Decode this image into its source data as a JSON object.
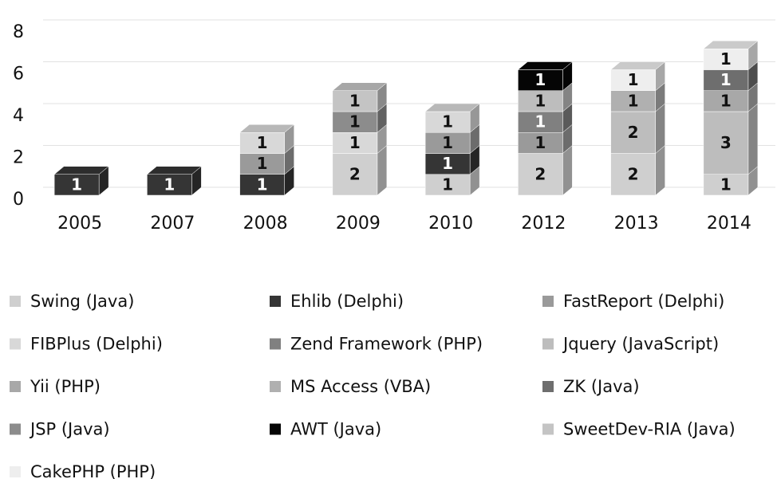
{
  "chart_data": {
    "type": "bar3d_stacked",
    "categories": [
      "2005",
      "2007",
      "2008",
      "2009",
      "2010",
      "2012",
      "2013",
      "2014"
    ],
    "series": [
      {
        "name": "Swing (Java)",
        "color": "#cfcfcf",
        "values": [
          null,
          null,
          null,
          2,
          1,
          2,
          2,
          1
        ]
      },
      {
        "name": "Ehlib (Delphi)",
        "color": "#353535",
        "values": [
          1,
          1,
          1,
          null,
          1,
          null,
          null,
          null
        ]
      },
      {
        "name": "FastReport (Delphi)",
        "color": "#9a9a9a",
        "values": [
          null,
          null,
          1,
          null,
          1,
          1,
          null,
          null
        ]
      },
      {
        "name": "FIBPlus (Delphi)",
        "color": "#d8d8d8",
        "values": [
          null,
          null,
          1,
          1,
          1,
          null,
          null,
          null
        ]
      },
      {
        "name": "Zend Framework (PHP)",
        "color": "#808080",
        "values": [
          null,
          null,
          null,
          null,
          null,
          1,
          null,
          null
        ]
      },
      {
        "name": "Jquery (JavaScript)",
        "color": "#bdbdbd",
        "values": [
          null,
          null,
          null,
          null,
          null,
          1,
          2,
          3
        ]
      },
      {
        "name": "Yii (PHP)",
        "color": "#a8a8a8",
        "values": [
          null,
          null,
          null,
          null,
          null,
          null,
          null,
          1
        ]
      },
      {
        "name": "MS Access (VBA)",
        "color": "#b0b0b0",
        "values": [
          null,
          null,
          null,
          null,
          null,
          null,
          1,
          null
        ]
      },
      {
        "name": "ZK (Java)",
        "color": "#6e6e6e",
        "values": [
          null,
          null,
          null,
          null,
          null,
          null,
          null,
          1
        ]
      },
      {
        "name": "JSP (Java)",
        "color": "#8c8c8c",
        "values": [
          null,
          null,
          null,
          1,
          null,
          null,
          null,
          null
        ]
      },
      {
        "name": "AWT (Java)",
        "color": "#050505",
        "values": [
          null,
          null,
          null,
          null,
          null,
          1,
          null,
          null
        ]
      },
      {
        "name": "SweetDev-RIA (Java)",
        "color": "#c4c4c4",
        "values": [
          null,
          null,
          null,
          1,
          null,
          null,
          null,
          null
        ]
      },
      {
        "name": "CakePHP (PHP)",
        "color": "#eeeeee",
        "values": [
          null,
          null,
          null,
          null,
          null,
          null,
          1,
          1
        ]
      }
    ],
    "ylim": [
      0,
      8
    ],
    "yticks": [
      0,
      2,
      4,
      6,
      8
    ],
    "grid": true,
    "legend": "bottom"
  }
}
